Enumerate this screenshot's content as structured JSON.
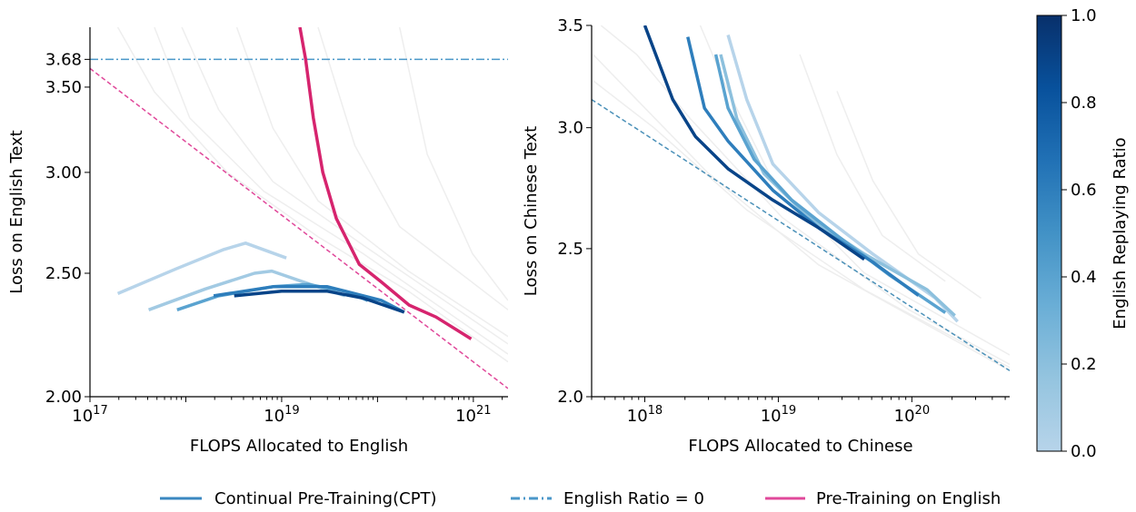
{
  "chart_data": [
    {
      "type": "line",
      "xlabel": "FLOPS Allocated to English",
      "ylabel": "Loss on English Text",
      "xscale": "log",
      "yscale": "log",
      "xlim": [
        1e+17,
        2.3e+21
      ],
      "ylim": [
        2.0,
        3.9
      ],
      "xticks": [
        {
          "v": 1e+17,
          "base": "10",
          "exp": "17"
        },
        {
          "v": 1e+19,
          "base": "10",
          "exp": "19"
        },
        {
          "v": 1e+21,
          "base": "10",
          "exp": "21"
        }
      ],
      "yticks": [
        {
          "v": 2.0,
          "label": "2.00"
        },
        {
          "v": 2.5,
          "label": "2.50"
        },
        {
          "v": 3.0,
          "label": "3.00"
        },
        {
          "v": 3.5,
          "label": "3.50"
        },
        {
          "v": 3.68,
          "label": "3.68"
        }
      ],
      "grid": false,
      "background_curves_color": "#eeeeee",
      "background_curves": [
        [
          [
            1.95e+17,
            3.9
          ],
          [
            4.7e+17,
            3.47
          ],
          [
            2.7e+18,
            3.0
          ],
          [
            2.4e+19,
            2.67
          ],
          [
            2.1e+20,
            2.42
          ],
          [
            2.3e+21,
            2.13
          ]
        ],
        [
          [
            9.1e+17,
            3.9
          ],
          [
            2.2e+18,
            3.36
          ],
          [
            8.1e+18,
            2.95
          ],
          [
            7.1e+19,
            2.63
          ],
          [
            2.3e+21,
            2.2
          ]
        ],
        [
          [
            3.4e+18,
            3.9
          ],
          [
            8.1e+18,
            3.25
          ],
          [
            2.4e+19,
            2.85
          ],
          [
            2.1e+20,
            2.51
          ],
          [
            2.3e+21,
            2.23
          ]
        ],
        [
          [
            2.4e+19,
            3.9
          ],
          [
            5.8e+19,
            3.15
          ],
          [
            1.7e+20,
            2.72
          ],
          [
            2.3e+21,
            2.34
          ]
        ],
        [
          [
            1.7e+20,
            3.9
          ],
          [
            3.3e+20,
            3.1
          ],
          [
            9.8e+20,
            2.59
          ],
          [
            2.3e+21,
            2.38
          ]
        ],
        [
          [
            4.7e+17,
            3.9
          ],
          [
            1.1e+18,
            3.31
          ],
          [
            6.5e+18,
            2.9
          ],
          [
            7.1e+19,
            2.59
          ],
          [
            2.3e+21,
            2.16
          ]
        ]
      ],
      "cpt_series": [
        {
          "ratio": 0.0,
          "points": [
            [
              1.95e+17,
              2.41
            ],
            [
              7.9e+17,
              2.52
            ],
            [
              2.5e+18,
              2.61
            ],
            [
              4.2e+18,
              2.64
            ],
            [
              1.12e+19,
              2.57
            ]
          ]
        },
        {
          "ratio": 0.1,
          "points": [
            [
              4.1e+17,
              2.34
            ],
            [
              1.6e+18,
              2.43
            ],
            [
              5.2e+18,
              2.5
            ],
            [
              7.9e+18,
              2.51
            ],
            [
              2e+19,
              2.45
            ],
            [
              4.6e+19,
              2.4
            ]
          ]
        },
        {
          "ratio": 0.4,
          "points": [
            [
              8.1e+17,
              2.34
            ],
            [
              2.2e+18,
              2.4
            ],
            [
              8.1e+18,
              2.44
            ],
            [
              1.9e+19,
              2.45
            ],
            [
              4.6e+19,
              2.42
            ],
            [
              7.9e+19,
              2.38
            ]
          ]
        },
        {
          "ratio": 0.6,
          "points": [
            [
              1.95e+18,
              2.4
            ],
            [
              8.1e+18,
              2.44
            ],
            [
              3e+19,
              2.44
            ],
            [
              1.1e+20,
              2.38
            ],
            [
              1.9e+20,
              2.33
            ]
          ]
        },
        {
          "ratio": 0.9,
          "points": [
            [
              3.2e+18,
              2.4
            ],
            [
              1e+19,
              2.42
            ],
            [
              3e+19,
              2.42
            ],
            [
              7.1e+19,
              2.39
            ],
            [
              1.9e+20,
              2.33
            ]
          ]
        }
      ],
      "pretraining_series": {
        "color": "#d6246e",
        "points": [
          [
            1.55e+19,
            3.9
          ],
          [
            1.78e+19,
            3.68
          ],
          [
            2.14e+19,
            3.31
          ],
          [
            2.69e+19,
            3.0
          ],
          [
            3.72e+19,
            2.76
          ],
          [
            6.46e+19,
            2.54
          ],
          [
            1.1e+20,
            2.46
          ],
          [
            2.14e+20,
            2.36
          ],
          [
            4.07e+20,
            2.31
          ],
          [
            9.5e+20,
            2.22
          ]
        ]
      },
      "fit_line": {
        "color": "#e0489a",
        "style": "dashed",
        "points": [
          [
            1e+17,
            3.62
          ],
          [
            2.3e+21,
            2.03
          ]
        ]
      },
      "english_ratio0_line": {
        "color": "#4a97c9",
        "style": "dashdot",
        "y": 3.68
      }
    },
    {
      "type": "line",
      "xlabel": "FLOPS Allocated to Chinese",
      "ylabel": "Loss on Chinese Text",
      "xscale": "log",
      "yscale": "log",
      "xlim": [
        4e+17,
        5.4e+20
      ],
      "ylim": [
        2.0,
        3.5
      ],
      "xticks": [
        {
          "v": 1e+18,
          "base": "10",
          "exp": "18"
        },
        {
          "v": 1e+19,
          "base": "10",
          "exp": "19"
        },
        {
          "v": 1e+20,
          "base": "10",
          "exp": "20"
        }
      ],
      "yticks": [
        {
          "v": 2.0,
          "label": "2.0"
        },
        {
          "v": 2.5,
          "label": "2.5"
        },
        {
          "v": 3.0,
          "label": "3.0"
        },
        {
          "v": 3.5,
          "label": "3.5"
        }
      ],
      "grid": false,
      "background_curves_color": "#eeeeee",
      "background_curves": [
        [
          [
            4.1e+17,
            3.35
          ],
          [
            8.7e+17,
            3.13
          ],
          [
            3e+18,
            2.8
          ],
          [
            2e+19,
            2.44
          ],
          [
            5.4e+20,
            2.08
          ]
        ],
        [
          [
            4.1e+17,
            3.22
          ],
          [
            1.17e+18,
            3.0
          ],
          [
            5.8e+18,
            2.65
          ],
          [
            4.4e+19,
            2.35
          ],
          [
            5.4e+20,
            2.09
          ]
        ],
        [
          [
            4.7e+17,
            3.5
          ],
          [
            8.7e+17,
            3.35
          ],
          [
            2.2e+18,
            3.04
          ],
          [
            1.07e+19,
            2.62
          ],
          [
            9.5e+19,
            2.28
          ],
          [
            5.4e+20,
            2.1
          ]
        ],
        [
          [
            2.6e+18,
            3.5
          ],
          [
            4.2e+18,
            3.17
          ],
          [
            9.1e+18,
            2.77
          ],
          [
            4.4e+19,
            2.41
          ],
          [
            5.4e+20,
            2.13
          ]
        ],
        [
          [
            2.75e+19,
            3.17
          ],
          [
            5.1e+19,
            2.77
          ],
          [
            1.12e+20,
            2.48
          ],
          [
            3.3e+20,
            2.32
          ]
        ],
        [
          [
            1.45e+19,
            3.35
          ],
          [
            2.75e+19,
            2.88
          ],
          [
            6e+19,
            2.55
          ],
          [
            1.78e+20,
            2.38
          ]
        ]
      ],
      "cpt_series": [
        {
          "ratio": 0.0,
          "points": [
            [
              4.2e+18,
              3.45
            ],
            [
              5.8e+18,
              3.13
            ],
            [
              9.1e+18,
              2.84
            ],
            [
              2e+19,
              2.64
            ],
            [
              5.1e+19,
              2.48
            ],
            [
              1.5e+20,
              2.32
            ],
            [
              2.2e+20,
              2.24
            ]
          ]
        },
        {
          "ratio": 0.2,
          "points": [
            [
              3.7e+18,
              3.35
            ],
            [
              4.9e+18,
              3.04
            ],
            [
              7.8e+18,
              2.8
            ],
            [
              1.7e+19,
              2.62
            ],
            [
              4.4e+19,
              2.48
            ],
            [
              1.3e+20,
              2.35
            ],
            [
              2.1e+20,
              2.26
            ]
          ]
        },
        {
          "ratio": 0.4,
          "points": [
            [
              3.4e+18,
              3.35
            ],
            [
              4.2e+18,
              3.09
            ],
            [
              6.6e+18,
              2.86
            ],
            [
              1.26e+19,
              2.69
            ],
            [
              2.75e+19,
              2.55
            ],
            [
              6.9e+19,
              2.4
            ],
            [
              1.78e+20,
              2.27
            ]
          ]
        },
        {
          "ratio": 0.6,
          "points": [
            [
              2.1e+18,
              3.44
            ],
            [
              2.8e+18,
              3.09
            ],
            [
              4.2e+18,
              2.94
            ],
            [
              9.1e+18,
              2.73
            ],
            [
              2e+19,
              2.58
            ],
            [
              5.1e+19,
              2.45
            ],
            [
              1.12e+20,
              2.33
            ]
          ]
        },
        {
          "ratio": 0.9,
          "points": [
            [
              1e+18,
              3.5
            ],
            [
              1.62e+18,
              3.13
            ],
            [
              2.4e+18,
              2.96
            ],
            [
              4.2e+18,
              2.82
            ],
            [
              9.1e+18,
              2.69
            ],
            [
              2e+19,
              2.58
            ],
            [
              4.4e+19,
              2.46
            ]
          ]
        }
      ],
      "fit_line": {
        "color": "#4a90b8",
        "style": "dashed",
        "points": [
          [
            4e+17,
            3.13
          ],
          [
            5.4e+20,
            2.08
          ]
        ]
      }
    }
  ],
  "colorbar": {
    "label": "English Replaying Ratio",
    "range": [
      0.0,
      1.0
    ],
    "ticks": [
      "0.0",
      "0.2",
      "0.4",
      "0.6",
      "0.8",
      "1.0"
    ],
    "colormap": [
      "#b7d4ea",
      "#94c4df",
      "#6aaed6",
      "#4292c6",
      "#2171b5",
      "#08519c",
      "#08306b"
    ]
  },
  "legend": {
    "placement": "bottom",
    "items": [
      {
        "label": "Continual Pre-Training(CPT)",
        "color": "#3a87c0",
        "style": "solid"
      },
      {
        "label": "English Ratio = 0",
        "color": "#4a97c9",
        "style": "dashdot"
      },
      {
        "label": "Pre-Training on English",
        "color": "#e0489a",
        "style": "solid"
      }
    ]
  }
}
